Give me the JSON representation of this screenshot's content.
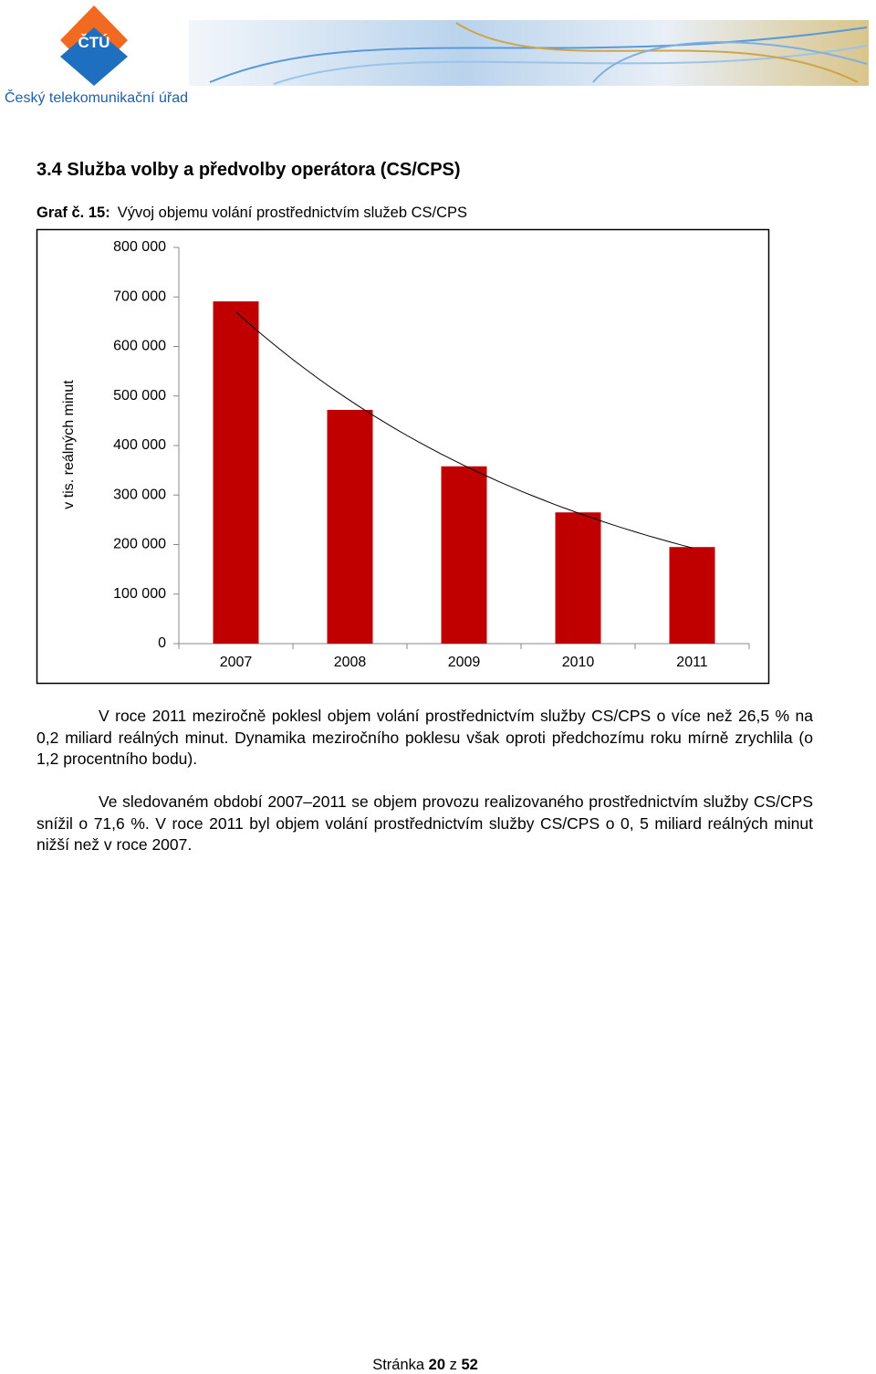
{
  "header": {
    "logo_text": "ČTÚ",
    "org_name": "Český telekomunikační úřad"
  },
  "section_title": "3.4 Služba volby a předvolby operátora (CS/CPS)",
  "figure": {
    "label": "Graf č. 15:",
    "title": "Vývoj objemu volání prostřednictvím služeb CS/CPS"
  },
  "chart_data": {
    "type": "bar",
    "y_label": "v tis. reálných minut",
    "categories": [
      "2007",
      "2008",
      "2009",
      "2010",
      "2011"
    ],
    "values": [
      691000,
      472000,
      358000,
      265000,
      195000
    ],
    "color": "#c00000",
    "trendline": "exponential",
    "trendline_color": "#000000",
    "ylim": [
      0,
      800000
    ],
    "yticks": [
      0,
      {
        "value": 100000,
        "label": "100 000"
      },
      {
        "value": 200000,
        "label": "200 000"
      },
      {
        "value": 300000,
        "label": "300 000"
      },
      {
        "value": 400000,
        "label": "400 000"
      },
      {
        "value": 500000,
        "label": "500 000"
      },
      {
        "value": 600000,
        "label": "600 000"
      },
      {
        "value": 700000,
        "label": "700 000"
      },
      {
        "value": 800000,
        "label": "800 000"
      }
    ],
    "grid": false
  },
  "paragraphs": [
    "V roce 2011 meziročně poklesl objem volání prostřednictvím služby CS/CPS o více než 26,5 % na 0,2 miliard reálných minut. Dynamika meziročního poklesu však oproti předchozímu roku mírně zrychlila (o 1,2 procentního bodu).",
    "Ve sledovaném období 2007–2011 se objem provozu realizovaného prostřednictvím služby CS/CPS snížil o 71,6 %. V roce 2011 byl objem volání prostřednictvím služby CS/CPS o 0, 5 miliard reálných minut nižší než v roce 2007."
  ],
  "footer": {
    "prefix": "Stránka",
    "page": "20",
    "middle": "z",
    "total": "52"
  }
}
